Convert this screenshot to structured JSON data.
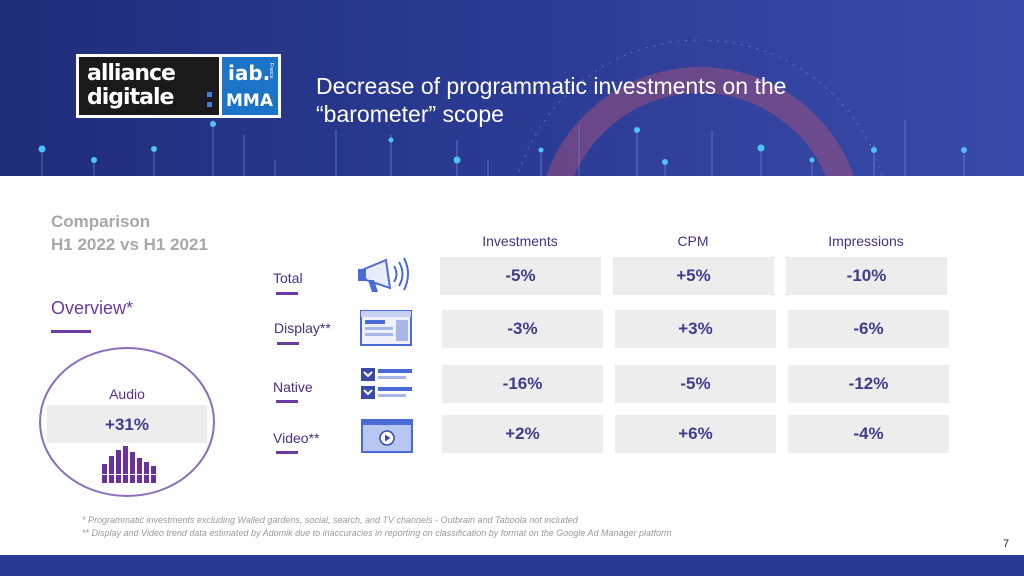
{
  "header": {
    "title": "Decrease of programmatic investments on the “barometer” scope",
    "logo": {
      "line1": "alliance",
      "line2": "digitale",
      "iab": "iab.",
      "france": "France",
      "mma": "MMA"
    }
  },
  "comparison": {
    "line1": "Comparison",
    "line2": "H1 2022 vs H1 2021"
  },
  "overview": {
    "label": "Overview*"
  },
  "audio": {
    "label": "Audio",
    "value": "+31%",
    "icon": "equalizer-icon"
  },
  "columns": [
    "Investments",
    "CPM",
    "Impressions"
  ],
  "rows": [
    {
      "label": "Total",
      "icon": "megaphone-icon",
      "values": [
        "-5%",
        "+5%",
        "-10%"
      ]
    },
    {
      "label": "Display**",
      "icon": "display-ad-icon",
      "values": [
        "-3%",
        "+3%",
        "-6%"
      ]
    },
    {
      "label": "Native",
      "icon": "native-list-icon",
      "values": [
        "-16%",
        "-5%",
        "-12%"
      ]
    },
    {
      "label": "Video**",
      "icon": "video-play-icon",
      "values": [
        "+2%",
        "+6%",
        "-4%"
      ]
    }
  ],
  "footnotes": [
    "* Programmatic investments excluding Walled gardens, social, search, and TV channels - Outbrain and Taboola not included",
    "** Display and Video trend data estimated by Adomik due to inaccuracies in reporting on classification by format on the Google Ad Manager platform"
  ],
  "page_number": "7",
  "colors": {
    "header_blue": "#2a3a92",
    "purple_accent": "#6b3aa3",
    "value_text": "#3d3d8c",
    "cell_bg": "#ededed",
    "icon_blue": "#4a6bd6"
  }
}
